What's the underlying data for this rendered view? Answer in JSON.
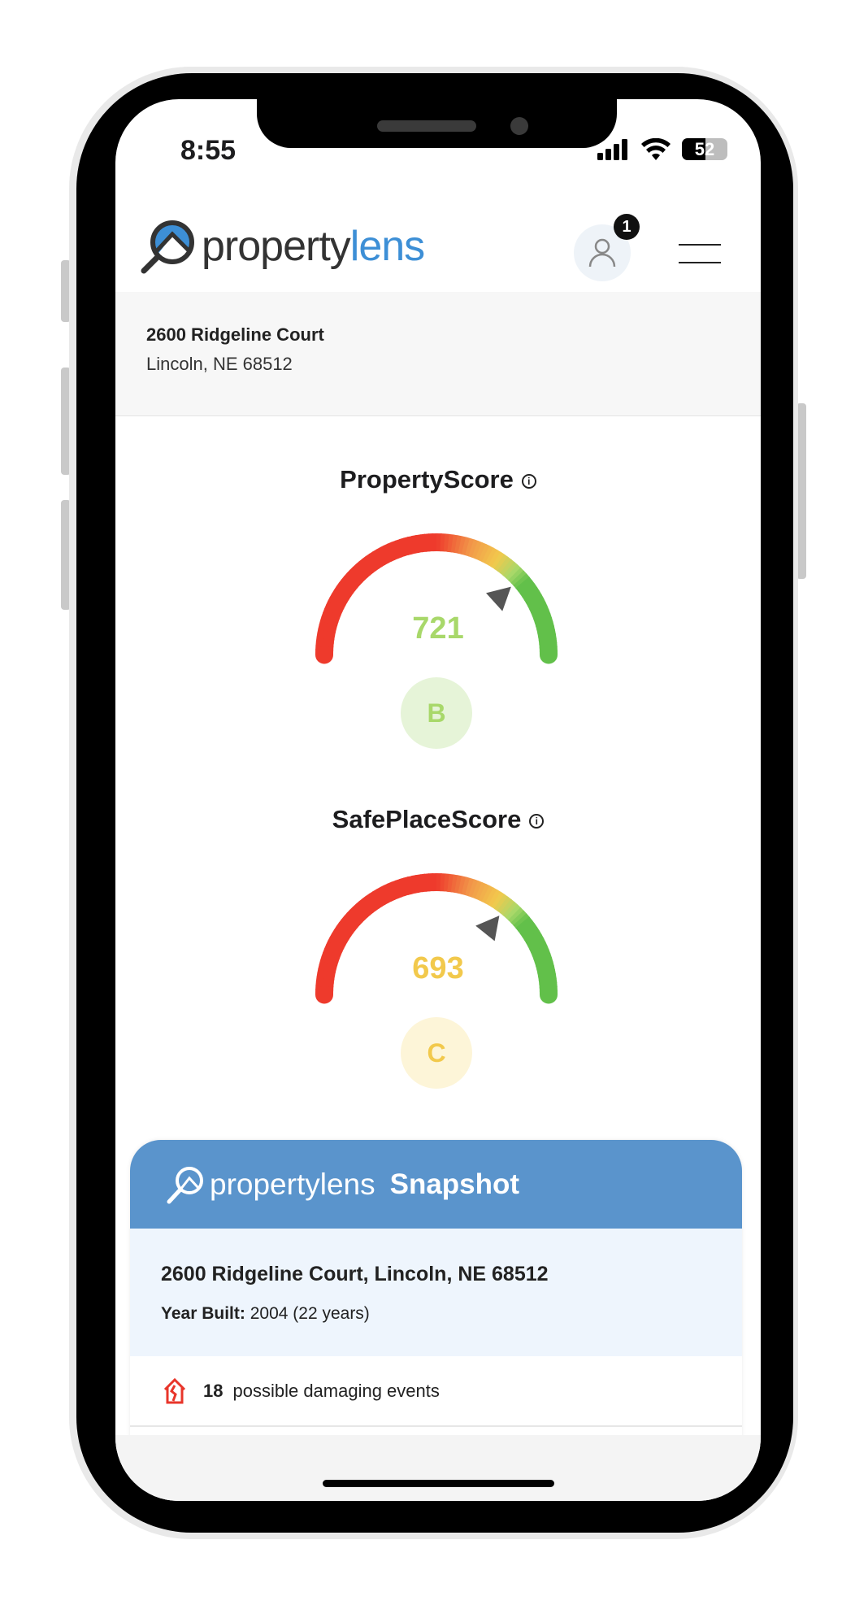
{
  "status": {
    "time": "8:55",
    "battery": "52"
  },
  "header": {
    "logo_dark": "property",
    "logo_blue": "lens",
    "notification_count": "1"
  },
  "address": {
    "line1": "2600 Ridgeline Court",
    "line2": "Lincoln, NE 68512"
  },
  "scores": [
    {
      "title": "PropertyScore",
      "value": 721,
      "value_text": "721",
      "grade": "B",
      "color": "#a8d86a",
      "grade_bg": "#e6f4d8"
    },
    {
      "title": "SafePlaceScore",
      "value": 693,
      "value_text": "693",
      "grade": "C",
      "color": "#f2c94c",
      "grade_bg": "#fdf5d8"
    }
  ],
  "gauge": {
    "min": 300,
    "max": 850,
    "colors": {
      "red": "#ee3a2c",
      "orange": "#f2994a",
      "yellow": "#f2c94c",
      "lightgreen": "#a8d86a",
      "green": "#62c04a"
    }
  },
  "snapshot": {
    "brand": "propertylens",
    "title": "Snapshot",
    "address": "2600 Ridgeline Court, Lincoln, NE 68512",
    "year_label": "Year Built:",
    "year_value": "2004 (22 years)",
    "events_count": "18",
    "events_text": "possible damaging events"
  },
  "colors": {
    "brand_blue": "#3d8fd6",
    "snapshot_header": "#5a94cc"
  }
}
